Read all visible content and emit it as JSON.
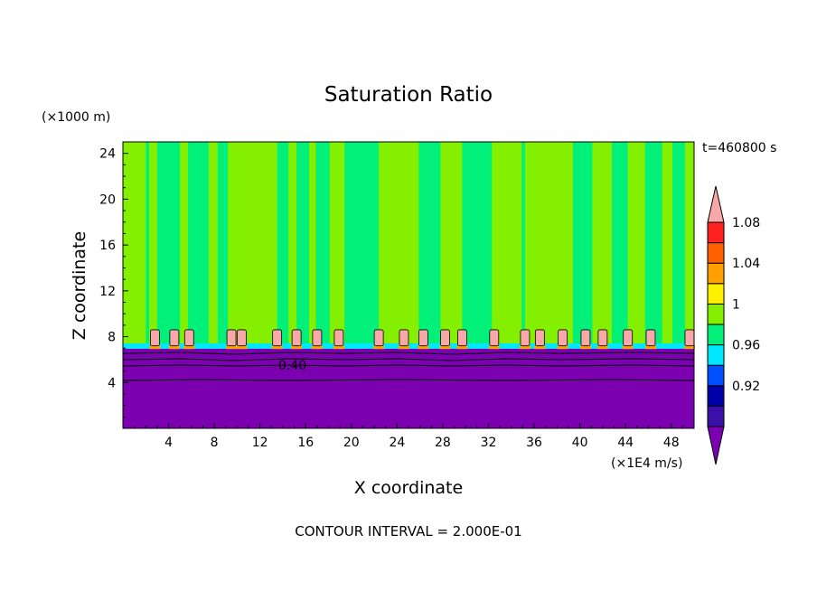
{
  "chart_data": {
    "type": "heatmap",
    "title": "Saturation Ratio",
    "xlabel": "X coordinate",
    "ylabel": "Z coordinate",
    "x_unit": "(×1E4 m/s)",
    "y_unit": "(×1000 m)",
    "time_label": "t=460800 s",
    "footer": "CONTOUR INTERVAL = 2.000E-01",
    "contour_label": "0.40",
    "xlim": [
      0,
      50
    ],
    "ylim": [
      0,
      25
    ],
    "xticks": [
      4,
      8,
      12,
      16,
      20,
      24,
      28,
      32,
      36,
      40,
      44,
      48
    ],
    "yticks": [
      4,
      8,
      12,
      16,
      20,
      24
    ],
    "colorbar": {
      "labels": [
        "0.92",
        "0.96",
        "1",
        "1.04",
        "1.08"
      ],
      "colors": [
        "#7b00b0",
        "#3a10a8",
        "#0000a8",
        "#0050ff",
        "#00e8ff",
        "#00f07a",
        "#84f000",
        "#fff000",
        "#ffa000",
        "#ff6000",
        "#ff2020",
        "#f8a8a8"
      ]
    },
    "layers": [
      {
        "name": "lower layer",
        "z_range": [
          0,
          6.5
        ],
        "value": "< 0.92",
        "color": "#7b00b0"
      },
      {
        "name": "cloud base band",
        "z_range": [
          6.5,
          7.0
        ],
        "value": "0.96–1",
        "color": "#00e8ff"
      },
      {
        "name": "upper layer",
        "z_range": [
          7.0,
          25
        ],
        "value": "≈1 (alternating 0.98–1.02)",
        "color": "#00f07a"
      }
    ],
    "supersaturated_cells_x": [
      2.8,
      4.5,
      5.8,
      9.5,
      10.4,
      13.5,
      15.2,
      17.0,
      18.9,
      22.4,
      24.6,
      26.3,
      28.2,
      29.7,
      32.5,
      35.2,
      36.5,
      38.5,
      40.5,
      42.0,
      44.2,
      46.2,
      49.6
    ],
    "green_columns_x": [
      [
        0,
        2.0
      ],
      [
        2.3,
        3.0
      ],
      [
        5.0,
        5.7
      ],
      [
        7.5,
        8.3
      ],
      [
        9.2,
        13.5
      ],
      [
        14.5,
        15.2
      ],
      [
        16.3,
        16.9
      ],
      [
        18.1,
        19.4
      ],
      [
        22.4,
        25.9
      ],
      [
        27.8,
        29.7
      ],
      [
        32.3,
        34.9
      ],
      [
        35.2,
        39.4
      ],
      [
        41.1,
        42.8
      ],
      [
        44.2,
        45.7
      ],
      [
        47.2,
        48.1
      ],
      [
        49.2,
        50.0
      ]
    ]
  }
}
